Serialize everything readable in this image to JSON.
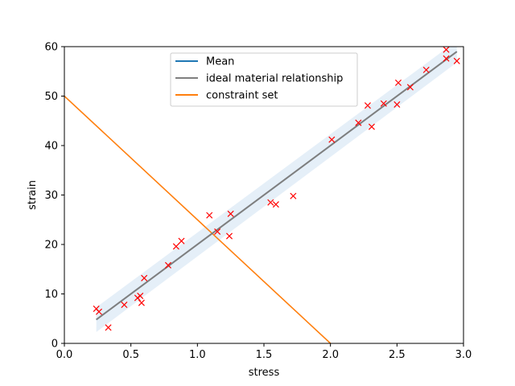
{
  "chart_data": {
    "type": "scatter",
    "xlabel": "stress",
    "ylabel": "strain",
    "xlim": [
      0.0,
      3.0
    ],
    "ylim": [
      0,
      60
    ],
    "x_ticks": [
      "0.0",
      "0.5",
      "1.0",
      "1.5",
      "2.0",
      "2.5",
      "3.0"
    ],
    "y_ticks": [
      "0",
      "10",
      "20",
      "30",
      "40",
      "50",
      "60"
    ],
    "grid": false,
    "legend_position": "top-center",
    "legend": [
      "Mean",
      "ideal material relationship",
      "constraint set"
    ],
    "series": [
      {
        "name": "Mean",
        "kind": "line",
        "color": "#1f77b4",
        "x": [
          0.24,
          2.95
        ],
        "y": [
          4.8,
          59.0
        ]
      },
      {
        "name": "ideal material relationship",
        "kind": "line",
        "color": "#7f7f7f",
        "x": [
          0.24,
          2.95
        ],
        "y": [
          4.8,
          59.0
        ]
      },
      {
        "name": "constraint set",
        "kind": "line",
        "color": "#ff7f0e",
        "x": [
          0.0,
          2.0
        ],
        "y": [
          50.0,
          0.0
        ]
      },
      {
        "kind": "markers",
        "marker": "x",
        "color": "#ff0000",
        "points": [
          [
            0.24,
            7.0
          ],
          [
            0.26,
            6.4
          ],
          [
            0.33,
            3.2
          ],
          [
            0.45,
            7.8
          ],
          [
            0.55,
            9.2
          ],
          [
            0.57,
            9.6
          ],
          [
            0.58,
            8.2
          ],
          [
            0.6,
            13.2
          ],
          [
            0.78,
            15.8
          ],
          [
            0.84,
            19.6
          ],
          [
            0.88,
            20.7
          ],
          [
            1.09,
            25.9
          ],
          [
            1.15,
            22.6
          ],
          [
            1.24,
            21.7
          ],
          [
            1.25,
            26.2
          ],
          [
            1.55,
            28.5
          ],
          [
            1.59,
            28.1
          ],
          [
            1.72,
            29.8
          ],
          [
            2.01,
            41.2
          ],
          [
            2.21,
            44.6
          ],
          [
            2.28,
            48.1
          ],
          [
            2.31,
            43.8
          ],
          [
            2.4,
            48.5
          ],
          [
            2.5,
            48.3
          ],
          [
            2.51,
            52.7
          ],
          [
            2.6,
            51.8
          ],
          [
            2.72,
            55.3
          ],
          [
            2.87,
            57.6
          ],
          [
            2.87,
            59.4
          ],
          [
            2.95,
            57.1
          ]
        ]
      }
    ],
    "band": {
      "color": "#c6dbef",
      "x": [
        0.24,
        2.95
      ],
      "lower": [
        2.3,
        56.8
      ],
      "upper": [
        7.3,
        61.2
      ]
    }
  }
}
